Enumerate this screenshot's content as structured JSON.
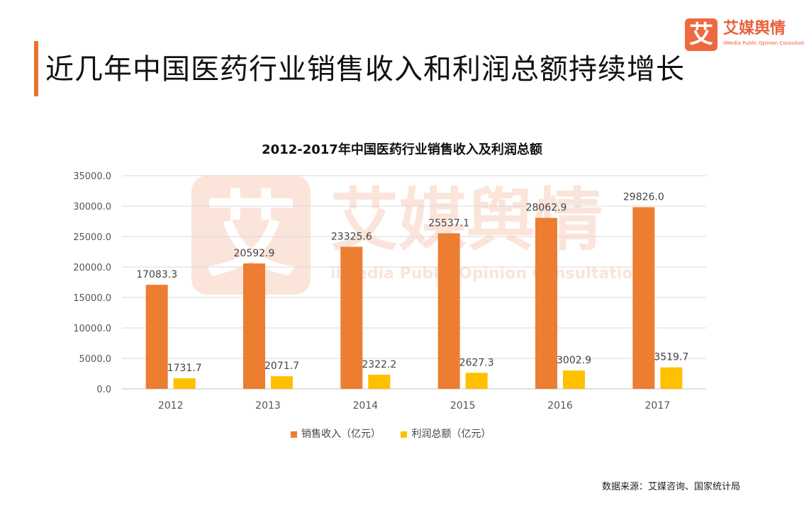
{
  "page": {
    "title": "近几年中国医药行业销售收入和利润总额持续增长",
    "accent_color": "#e8752a",
    "source_text": "数据来源：艾媒咨询、国家统计局"
  },
  "logo": {
    "mark": "艾",
    "name": "艾媒舆情",
    "subtitle": "iiMedia Public Opinion Consultation"
  },
  "watermark": {
    "mark": "艾",
    "name": "艾媒舆情",
    "subtitle": "iiMedia Public Opinion Consultation"
  },
  "chart_data": {
    "type": "bar",
    "title": "2012-2017年中国医药行业销售收入及利润总额",
    "categories": [
      "2012",
      "2013",
      "2014",
      "2015",
      "2016",
      "2017"
    ],
    "series": [
      {
        "name": "销售收入（亿元）",
        "color": "#ed7d31",
        "values": [
          17083.3,
          20592.9,
          23325.6,
          25537.1,
          28062.9,
          29826.0
        ],
        "labels": [
          "17083.3",
          "20592.9",
          "23325.6",
          "25537.1",
          "28062.9",
          "29826.0"
        ]
      },
      {
        "name": "利润总额（亿元）",
        "color": "#ffc000",
        "values": [
          1731.7,
          2071.7,
          2322.2,
          2627.3,
          3002.9,
          3519.7
        ],
        "labels": [
          "1731.7",
          "2071.7",
          "2322.2",
          "2627.3",
          "3002.9",
          "3519.7"
        ]
      }
    ],
    "ylim": [
      0,
      35000
    ],
    "yticks": [
      "0.0",
      "5000.0",
      "10000.0",
      "15000.0",
      "20000.0",
      "25000.0",
      "30000.0",
      "35000.0"
    ],
    "ytick_values": [
      0,
      5000,
      10000,
      15000,
      20000,
      25000,
      30000,
      35000
    ],
    "grid": true,
    "legend_position": "bottom"
  }
}
